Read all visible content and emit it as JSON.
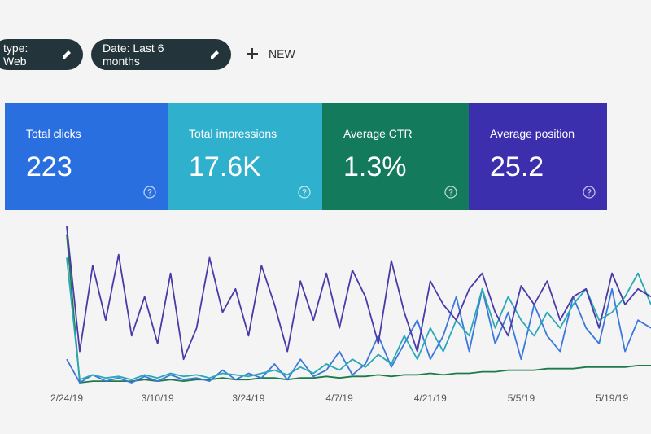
{
  "filters": [
    {
      "label": "type: Web"
    },
    {
      "label": "Date: Last 6 months"
    }
  ],
  "new_button": "NEW",
  "cards": [
    {
      "label": "Total clicks",
      "value": "223",
      "color": "#2a6fe0"
    },
    {
      "label": "Total impressions",
      "value": "17.6K",
      "color": "#2fb0cc"
    },
    {
      "label": "Average CTR",
      "value": "1.3%",
      "color": "#137a5c"
    },
    {
      "label": "Average position",
      "value": "25.2",
      "color": "#3b2fae"
    }
  ],
  "chart_data": {
    "type": "line",
    "categories": [
      "2/24/19",
      null,
      null,
      null,
      null,
      null,
      null,
      "3/10/19",
      null,
      null,
      null,
      null,
      null,
      null,
      "3/24/19",
      null,
      null,
      null,
      null,
      null,
      null,
      "4/7/19",
      null,
      null,
      null,
      null,
      null,
      null,
      "4/21/19",
      null,
      null,
      null,
      null,
      null,
      null,
      "5/5/19",
      null,
      null,
      null,
      null,
      null,
      null,
      "5/19/19",
      null,
      null,
      null
    ],
    "ylim": [
      0,
      100
    ],
    "series": [
      {
        "color": "#4a3aa8",
        "values": [
          100,
          20,
          75,
          40,
          82,
          30,
          55,
          25,
          70,
          15,
          35,
          80,
          45,
          60,
          30,
          75,
          50,
          20,
          65,
          40,
          70,
          35,
          72,
          55,
          25,
          78,
          45,
          20,
          65,
          50,
          40,
          60,
          70,
          45,
          30,
          62,
          50,
          65,
          40,
          55,
          60,
          35,
          70,
          50,
          60,
          55
        ]
      },
      {
        "color": "#2aa8b8",
        "values": [
          80,
          2,
          5,
          3,
          4,
          2,
          5,
          3,
          6,
          4,
          5,
          3,
          6,
          5,
          4,
          6,
          8,
          5,
          10,
          6,
          12,
          8,
          15,
          10,
          18,
          12,
          30,
          15,
          35,
          20,
          40,
          30,
          60,
          35,
          55,
          40,
          30,
          45,
          35,
          50,
          60,
          40,
          45,
          55,
          70,
          50
        ]
      },
      {
        "color": "#3a78dc",
        "values": [
          15,
          0,
          5,
          1,
          3,
          0,
          4,
          1,
          5,
          2,
          3,
          1,
          8,
          2,
          6,
          3,
          12,
          2,
          15,
          4,
          8,
          20,
          5,
          12,
          30,
          10,
          25,
          40,
          15,
          30,
          55,
          20,
          60,
          25,
          45,
          15,
          50,
          30,
          20,
          55,
          35,
          25,
          60,
          20,
          40,
          35
        ]
      },
      {
        "color": "#1f7a4a",
        "values": [
          95,
          0,
          1,
          1,
          1,
          1,
          2,
          1,
          2,
          1,
          2,
          2,
          3,
          2,
          2,
          3,
          3,
          2,
          3,
          3,
          4,
          3,
          4,
          4,
          5,
          4,
          5,
          5,
          6,
          5,
          6,
          6,
          7,
          7,
          8,
          8,
          8,
          9,
          9,
          9,
          10,
          10,
          10,
          10,
          11,
          11
        ]
      }
    ]
  }
}
